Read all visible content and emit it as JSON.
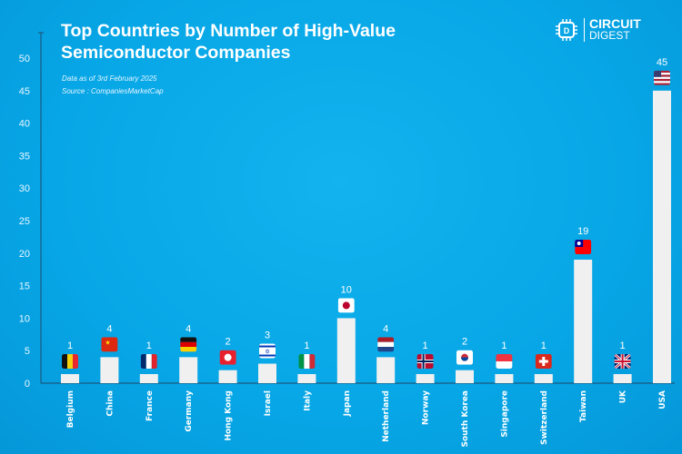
{
  "header": {
    "title": "Top Countries by Number of High-Value Semiconductor Companies",
    "date_note": "Data as of 3rd February 2025",
    "source_note": "Source : CompaniesMarketCap",
    "logo": {
      "line1": "CIRCUIT",
      "line2": "DIGEST"
    }
  },
  "chart_data": {
    "type": "bar",
    "title": "Top Countries by Number of High-Value Semiconductor Companies",
    "xlabel": "",
    "ylabel": "",
    "ylim": [
      0,
      50
    ],
    "yticks": [
      0,
      5,
      10,
      15,
      20,
      25,
      30,
      35,
      40,
      45,
      50
    ],
    "grid": false,
    "bar_color": "#f0f0f0",
    "categories": [
      "Belgium",
      "China",
      "France",
      "Germany",
      "Hong Kong",
      "Israel",
      "Italy",
      "Japan",
      "Netherland",
      "Norway",
      "South Korea",
      "Singapore",
      "Switzerland",
      "Taiwan",
      "UK",
      "USA"
    ],
    "values": [
      1,
      4,
      1,
      4,
      2,
      3,
      1,
      10,
      4,
      1,
      2,
      1,
      1,
      19,
      1,
      45
    ],
    "flag_icons": [
      "belgium-flag",
      "china-flag",
      "france-flag",
      "germany-flag",
      "hong-kong-flag",
      "israel-flag",
      "italy-flag",
      "japan-flag",
      "netherlands-flag",
      "norway-flag",
      "south-korea-flag",
      "singapore-flag",
      "switzerland-flag",
      "taiwan-flag",
      "uk-flag",
      "usa-flag"
    ]
  }
}
